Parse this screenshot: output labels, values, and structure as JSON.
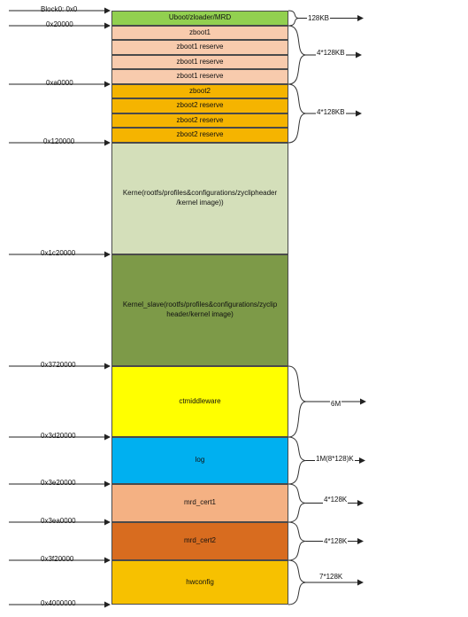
{
  "addresses": [
    "Block0: 0x0",
    "0x20000",
    "0xa0000",
    "0x120000",
    "0x1c20000",
    "0x3720000",
    "0x3d20000",
    "0x3e20000",
    "0x3ea0000",
    "0x3f20000",
    "0x4000000"
  ],
  "blocks": [
    {
      "label": "Uboot/zloader/MRD",
      "color": "#92d050"
    },
    {
      "label": "zboot1",
      "color": "#f8cbad"
    },
    {
      "label": "zboot1 reserve",
      "color": "#f8cbad"
    },
    {
      "label": "zboot1 reserve",
      "color": "#f8cbad"
    },
    {
      "label": "zboot1 reserve",
      "color": "#f8cbad"
    },
    {
      "label": "zboot2",
      "color": "#f5b400"
    },
    {
      "label": "zboot2 reserve",
      "color": "#f5b400"
    },
    {
      "label": "zboot2 reserve",
      "color": "#f5b400"
    },
    {
      "label": "zboot2 reserve",
      "color": "#f5b400"
    },
    {
      "label": "Kerne(rootfs/profiles&configurations/zyclipheader /kernel image))",
      "color": "#d4dfba"
    },
    {
      "label": "Kernel_slave(rootfs/profiles&configurations/zyclip header/kernel image)",
      "color": "#7d9a48"
    },
    {
      "label": "ctmiddleware",
      "color": "#ffff00"
    },
    {
      "label": "log",
      "color": "#00b0f0"
    },
    {
      "label": "mrd_cert1",
      "color": "#f4b183"
    },
    {
      "label": "mrd_cert2",
      "color": "#d86c1f"
    },
    {
      "label": "hwconfig",
      "color": "#f7c100"
    }
  ],
  "sizes": [
    "128KB",
    "4*128KB",
    "4*128KB",
    "6M",
    "1M(8*128)K",
    "4*128K",
    "4*128K",
    "7*128K"
  ]
}
